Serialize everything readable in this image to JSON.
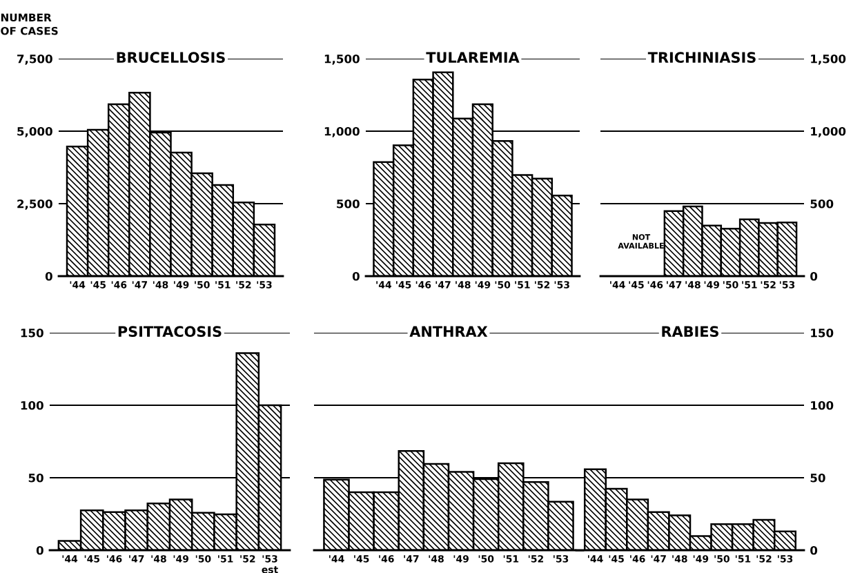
{
  "chart_data": [
    {
      "type": "bar",
      "title": "BRUCELLOSIS",
      "ylabel": "NUMBER\nOF CASES",
      "categories": [
        "'44",
        "'45",
        "'46",
        "'47",
        "'48",
        "'49",
        "'50",
        "'51",
        "'52",
        "'53"
      ],
      "series": [
        {
          "color": "#000000",
          "values": [
            4470,
            5050,
            5930,
            6330,
            4950,
            4260,
            3550,
            3140,
            2540,
            1780
          ]
        }
      ],
      "ylim": [
        0,
        7500
      ],
      "yticks": [
        0,
        {
          "value": 2500,
          "label": "2,500"
        },
        {
          "value": 5000,
          "label": "5,000"
        },
        {
          "value": 7500,
          "label": "7,500"
        }
      ],
      "grid": "y"
    },
    {
      "type": "bar",
      "title": "TULAREMIA",
      "categories": [
        "'44",
        "'45",
        "'46",
        "'47",
        "'48",
        "'49",
        "'50",
        "'51",
        "'52",
        "'53"
      ],
      "series": [
        {
          "color": "#000000",
          "values": [
            787,
            902,
            1356,
            1406,
            1087,
            1186,
            932,
            698,
            673,
            556
          ]
        }
      ],
      "ylim": [
        0,
        1500
      ],
      "yticks": [
        0,
        500,
        {
          "value": 1000,
          "label": "1,000"
        },
        {
          "value": 1500,
          "label": "1,500"
        }
      ],
      "grid": "y"
    },
    {
      "type": "bar",
      "title": "TRICHINIASIS",
      "categories": [
        "'44",
        "'45",
        "'46",
        "'47",
        "'48",
        "'49",
        "'50",
        "'51",
        "'52",
        "'53"
      ],
      "series": [
        {
          "color": "#000000",
          "axis": "y2",
          "values": [
            null,
            null,
            null,
            449,
            481,
            349,
            327,
            392,
            367,
            370
          ]
        }
      ],
      "y2lim": [
        0,
        1500
      ],
      "y2ticks": [
        0,
        500,
        {
          "value": 1000,
          "label": "1,000"
        },
        {
          "value": 1500,
          "label": "1,500"
        }
      ],
      "grid": "y",
      "annotations": [
        "NOT\nAVAILABLE"
      ]
    },
    {
      "type": "bar",
      "title": "PSITTACOSIS",
      "categories": [
        "'44",
        "'45",
        "'46",
        "'47",
        "'48",
        "'49",
        "'50",
        "'51",
        "'52",
        "'53\nest"
      ],
      "series": [
        {
          "color": "#000000",
          "values": [
            6.4,
            27.5,
            26.3,
            27.5,
            32.3,
            35,
            25.8,
            24.8,
            136,
            100
          ]
        }
      ],
      "ylim": [
        0,
        150
      ],
      "yticks": [
        0,
        50,
        100,
        150
      ],
      "grid": "y"
    },
    {
      "type": "bar",
      "title": "ANTHRAX",
      "categories": [
        "'44",
        "'45",
        "'46",
        "'47",
        "'48",
        "'49",
        "'50",
        "'51",
        "'52",
        "'53"
      ],
      "series": [
        {
          "color": "#000000",
          "values": [
            48.7,
            40,
            40,
            68.5,
            59.5,
            54,
            49,
            60,
            47,
            33.5
          ]
        }
      ],
      "ylim": [
        0,
        150
      ],
      "yticks": [
        0,
        50,
        100,
        150
      ],
      "grid": "y",
      "tick_labels": "x"
    },
    {
      "type": "bar",
      "title": "RABIES",
      "categories": [
        "'44",
        "'45",
        "'46",
        "'47",
        "'48",
        "'49",
        "'50",
        "'51",
        "'52",
        "'53"
      ],
      "series": [
        {
          "color": "#000000",
          "axis": "y2",
          "values": [
            55.8,
            42.4,
            35,
            26.3,
            24,
            9.8,
            18,
            18,
            21,
            13
          ]
        }
      ],
      "y2lim": [
        0,
        150
      ],
      "y2ticks": [
        0,
        50,
        100,
        150
      ],
      "grid": "y"
    }
  ]
}
